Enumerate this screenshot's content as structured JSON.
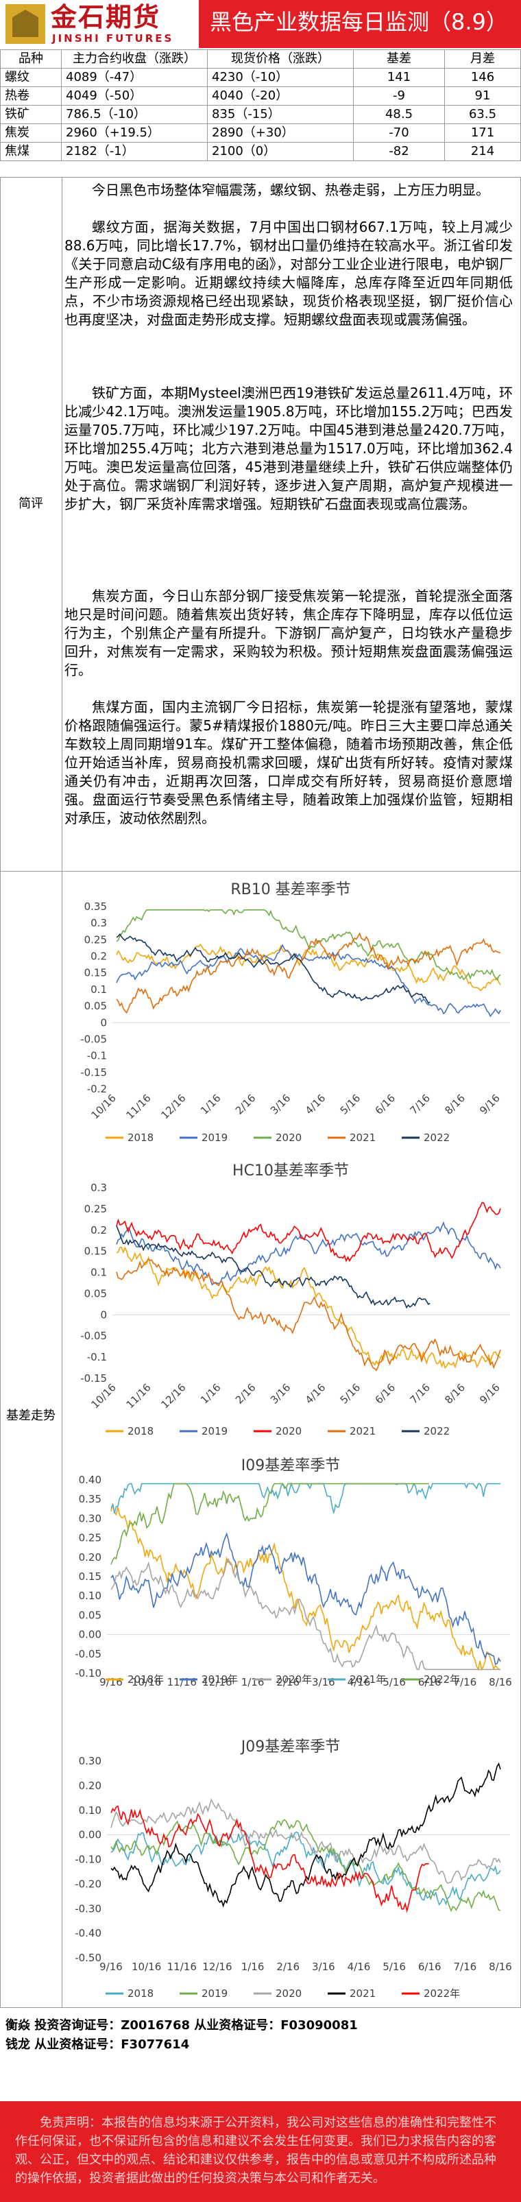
{
  "header": {
    "logo_cn": "金石期货",
    "logo_en": "JINSHI FUTURES",
    "title": "黑色产业数据每日监测（8.9）"
  },
  "summary_table": {
    "columns": [
      "品种",
      "主力合约收盘（涨跌）",
      "现货价格（涨跌）",
      "基差",
      "月差"
    ],
    "rows": [
      {
        "name": "螺纹",
        "close": "4089（-47）",
        "spot": "4230（-10）",
        "basis": "141",
        "spread": "146"
      },
      {
        "name": "热卷",
        "close": "4049（-50）",
        "spot": "4040（-20）",
        "basis": "-9",
        "spread": "91"
      },
      {
        "name": "铁矿",
        "close": "786.5（-10）",
        "spot": "835（-15）",
        "basis": "48.5",
        "spread": "63.5"
      },
      {
        "name": "焦炭",
        "close": "2960（+19.5）",
        "spot": "2890（+30）",
        "basis": "-70",
        "spread": "171"
      },
      {
        "name": "焦煤",
        "close": "2182（-1）",
        "spot": "2100（0）",
        "basis": "-82",
        "spread": "214"
      }
    ]
  },
  "sections": {
    "commentary_label": "简评",
    "basis_label": "基差走势"
  },
  "commentary": [
    "今日黑色市场整体窄幅震荡，螺纹钢、热卷走弱，上方压力明显。",
    "螺纹方面，据海关数据，7月中国出口钢材667.1万吨，较上月减少88.6万吨，同比增长17.7%，钢材出口量仍维持在较高水平。浙江省印发《关于同意启动C级有序用电的函》，对部分工业企业进行限电，电炉钢厂生产形成一定影响。近期螺纹持续大幅降库，总库存降至近四年同期低点，不少市场资源规格已经出现紧缺，现货价格表现坚挺，钢厂挺价信心也再度坚决，对盘面走势形成支撑。短期螺纹盘面表现或震荡偏强。",
    "铁矿方面，本期Mysteel澳洲巴西19港铁矿发运总量2611.4万吨，环比减少42.1万吨。澳洲发运量1905.8万吨，环比增加155.2万吨；巴西发运量705.7万吨，环比减少197.2万吨。中国45港到港总量2420.7万吨，环比增加255.4万吨；北方六港到港总量为1517.0万吨，环比增加362.4万吨。澳巴发运量高位回落，45港到港量继续上升，铁矿石供应端整体仍处于高位。需求端钢厂利润好转，逐步进入复产周期，高炉复产规模进一步扩大，钢厂采货补库需求增强。短期铁矿石盘面表现或高位震荡。",
    "焦炭方面，今日山东部分钢厂接受焦炭第一轮提涨，首轮提涨全面落地只是时间问题。随着焦炭出货好转，焦企库存下降明显，库存以低位运行为主，个别焦企产量有所提升。下游钢厂高炉复产，日均铁水产量稳步回升，对焦炭有一定需求，采购较为积极。预计短期焦炭盘面震荡偏强运行。",
    "焦煤方面，国内主流钢厂今日招标，焦炭第一轮提涨有望落地，蒙煤价格跟随偏强运行。蒙5#精煤报价1880元/吨。昨日三大主要口岸总通关车数较上周同期增91车。煤矿开工整体偏稳，随着市场预期改善，焦企低位开始适当补库，贸易商投机需求回暖，煤矿出货有所好转。疫情对蒙煤通关仍有冲击，近期再次回落，口岸成交有所好转，贸易商挺价意愿增强。盘面运行节奏受黑色系情绪主导，随着政策上加强煤价监管，短期相对承压，波动依然剧烈。"
  ],
  "colors": {
    "y2018": "#f2a60a",
    "y2019": "#4472c4",
    "y2020": "#70ad47",
    "y2021": "#e46c0a",
    "y2022": "#17375e",
    "red": "#ff0000",
    "black": "#000000",
    "gray": "#a5a5a5",
    "teal": "#4bacc6"
  },
  "chart_data": [
    {
      "type": "line",
      "title": "RB10 基差率季节",
      "y_tick_labels": [
        "0.35",
        "0.3",
        "0.25",
        "0.2",
        "0.15",
        "0.1",
        "0.05",
        "0",
        "-0.05",
        "-0.1",
        "-0.15",
        "-0.2"
      ],
      "ylim": [
        -0.2,
        0.35
      ],
      "x_tick_labels": [
        "10/16",
        "11/16",
        "12/16",
        "1/16",
        "2/16",
        "3/16",
        "4/16",
        "5/16",
        "6/16",
        "7/16",
        "8/16",
        "9/16"
      ],
      "series": [
        {
          "name": "2018"
        },
        {
          "name": "2019"
        },
        {
          "name": "2020"
        },
        {
          "name": "2021"
        },
        {
          "name": "2022"
        }
      ]
    },
    {
      "type": "line",
      "title": "HC10基差率季节",
      "y_tick_labels": [
        "0.3",
        "0.25",
        "0.2",
        "0.15",
        "0.1",
        "0.05",
        "0",
        "-0.05",
        "-0.1",
        "-0.15"
      ],
      "ylim": [
        -0.15,
        0.3
      ],
      "x_tick_labels": [
        "10/16",
        "11/16",
        "12/16",
        "1/16",
        "2/16",
        "3/16",
        "4/16",
        "5/16",
        "6/16",
        "7/16",
        "8/16",
        "9/16"
      ],
      "series": [
        {
          "name": "2018"
        },
        {
          "name": "2019"
        },
        {
          "name": "2020"
        },
        {
          "name": "2021"
        },
        {
          "name": "2022"
        }
      ]
    },
    {
      "type": "line",
      "title": "I09基差率季节",
      "y_tick_labels": [
        "0.40",
        "0.35",
        "0.30",
        "0.25",
        "0.20",
        "0.15",
        "0.10",
        "0.05",
        "0.00",
        "-0.05",
        "-0.10"
      ],
      "ylim": [
        -0.1,
        0.4
      ],
      "x_tick_labels": [
        "9/16",
        "10/16",
        "11/16",
        "12/16",
        "1/16",
        "2/16",
        "3/16",
        "4/16",
        "5/16",
        "6/16",
        "7/16",
        "8/16"
      ],
      "series": [
        {
          "name": "2018年"
        },
        {
          "name": "2019年"
        },
        {
          "name": "2020年"
        },
        {
          "name": "2021年"
        },
        {
          "name": "2022年"
        }
      ]
    },
    {
      "type": "line",
      "title": "J09基差率季节",
      "y_tick_labels": [
        "0.30",
        "0.20",
        "0.10",
        "0.00",
        "-0.10",
        "-0.20",
        "-0.30",
        "-0.40",
        "-0.50"
      ],
      "ylim": [
        -0.5,
        0.3
      ],
      "x_tick_labels": [
        "9/16",
        "10/16",
        "11/16",
        "12/16",
        "1/16",
        "2/16",
        "3/16",
        "4/16",
        "5/16",
        "6/16",
        "7/16",
        "8/16"
      ],
      "series": [
        {
          "name": "2018"
        },
        {
          "name": "2019"
        },
        {
          "name": "2020"
        },
        {
          "name": "2021"
        },
        {
          "name": "2022年"
        }
      ]
    }
  ],
  "footer": {
    "contact1": "衡焱 投资咨询证号：Z0016768 从业资格证号：F03090081",
    "contact2": "钱龙 从业资格证号：F3077614",
    "disclaimer": "免责声明：本报告的信息均来源于公开资料，我公司对这些信息的准确性和完整性不作任何保证，也不保证所包含的信息和建议不会发生任何变更。我们已力求报告内容的客观、公正，但文中的观点、结论和建议仅供参考，报告中的信息或意见并不构成所述品种的操作依据，投资者据此做出的任何投资决策与本公司和作者无关。"
  }
}
